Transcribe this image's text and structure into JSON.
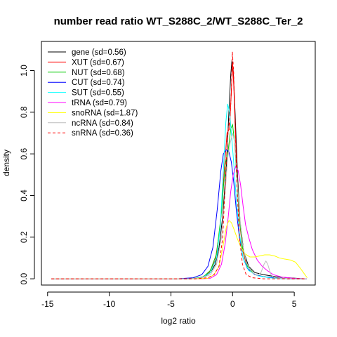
{
  "chart_data": {
    "type": "line",
    "title": "number read ratio WT_S288C_2/WT_S288C_Ter_2",
    "xlabel": "log2 ratio",
    "ylabel": "density",
    "xlim": [
      -15.5,
      6.7
    ],
    "ylim": [
      -0.03,
      1.14
    ],
    "xticks": [
      -15,
      -10,
      -5,
      0,
      5
    ],
    "xtick_labels": [
      "-15",
      "-10",
      "-5",
      "0",
      "5"
    ],
    "yticks": [
      0.0,
      0.2,
      0.4,
      0.6,
      0.8,
      1.0
    ],
    "ytick_labels": [
      "0.0",
      "0.2",
      "0.4",
      "0.6",
      "0.8",
      "1.0"
    ],
    "grid": false,
    "legend_position": "top-left",
    "series": [
      {
        "name": "gene (sd=0.56)",
        "color": "#000000",
        "dash": false,
        "points": [
          [
            -14.7,
            0
          ],
          [
            -4.5,
            0
          ],
          [
            -3,
            0.002
          ],
          [
            -2.3,
            0.01
          ],
          [
            -1.8,
            0.03
          ],
          [
            -1.4,
            0.07
          ],
          [
            -1.1,
            0.15
          ],
          [
            -0.8,
            0.3
          ],
          [
            -0.5,
            0.55
          ],
          [
            -0.3,
            0.8
          ],
          [
            -0.15,
            0.98
          ],
          [
            -0.05,
            1.05
          ],
          [
            0.05,
            1.0
          ],
          [
            0.2,
            0.8
          ],
          [
            0.4,
            0.5
          ],
          [
            0.6,
            0.28
          ],
          [
            0.9,
            0.13
          ],
          [
            1.3,
            0.06
          ],
          [
            1.8,
            0.03
          ],
          [
            2.5,
            0.02
          ],
          [
            3.5,
            0.01
          ],
          [
            4.5,
            0.005
          ],
          [
            5.5,
            0.001
          ],
          [
            6,
            0
          ]
        ]
      },
      {
        "name": "XUT (sd=0.67)",
        "color": "#ff0000",
        "dash": false,
        "points": [
          [
            -14.7,
            0
          ],
          [
            -3.5,
            0
          ],
          [
            -2.5,
            0.006
          ],
          [
            -1.9,
            0.03
          ],
          [
            -1.4,
            0.09
          ],
          [
            -1.0,
            0.25
          ],
          [
            -0.7,
            0.5
          ],
          [
            -0.45,
            0.7
          ],
          [
            -0.25,
            0.72
          ],
          [
            -0.1,
            0.9
          ],
          [
            0.0,
            1.04
          ],
          [
            0.1,
            0.92
          ],
          [
            0.3,
            0.58
          ],
          [
            0.5,
            0.32
          ],
          [
            0.8,
            0.14
          ],
          [
            1.2,
            0.05
          ],
          [
            1.8,
            0.02
          ],
          [
            2.5,
            0.01
          ],
          [
            3.5,
            0.005
          ],
          [
            4.5,
            0
          ],
          [
            6,
            0
          ]
        ]
      },
      {
        "name": "NUT (sd=0.68)",
        "color": "#00cc00",
        "dash": false,
        "points": [
          [
            -14.7,
            0
          ],
          [
            -3.5,
            0
          ],
          [
            -2.4,
            0.008
          ],
          [
            -1.8,
            0.04
          ],
          [
            -1.3,
            0.12
          ],
          [
            -0.9,
            0.32
          ],
          [
            -0.6,
            0.55
          ],
          [
            -0.35,
            0.62
          ],
          [
            -0.15,
            0.72
          ],
          [
            0.0,
            0.74
          ],
          [
            0.15,
            0.66
          ],
          [
            0.35,
            0.48
          ],
          [
            0.55,
            0.3
          ],
          [
            0.8,
            0.15
          ],
          [
            1.2,
            0.06
          ],
          [
            1.8,
            0.02
          ],
          [
            2.5,
            0.01
          ],
          [
            3.5,
            0.005
          ],
          [
            4.5,
            0
          ],
          [
            6,
            0
          ]
        ]
      },
      {
        "name": "CUT (sd=0.74)",
        "color": "#0000ff",
        "dash": false,
        "points": [
          [
            -14.7,
            0
          ],
          [
            -4.5,
            0
          ],
          [
            -3.2,
            0.005
          ],
          [
            -2.5,
            0.02
          ],
          [
            -2.0,
            0.06
          ],
          [
            -1.6,
            0.15
          ],
          [
            -1.25,
            0.33
          ],
          [
            -0.95,
            0.52
          ],
          [
            -0.75,
            0.6
          ],
          [
            -0.5,
            0.62
          ],
          [
            -0.3,
            0.61
          ],
          [
            -0.1,
            0.56
          ],
          [
            0.1,
            0.46
          ],
          [
            0.3,
            0.33
          ],
          [
            0.55,
            0.2
          ],
          [
            0.85,
            0.1
          ],
          [
            1.2,
            0.05
          ],
          [
            1.8,
            0.02
          ],
          [
            2.5,
            0.01
          ],
          [
            3.5,
            0.005
          ],
          [
            4.5,
            0
          ],
          [
            6,
            0
          ]
        ]
      },
      {
        "name": "SUT (sd=0.55)",
        "color": "#00ffff",
        "dash": false,
        "points": [
          [
            -14.7,
            0
          ],
          [
            -3.5,
            0
          ],
          [
            -2.5,
            0.005
          ],
          [
            -1.8,
            0.03
          ],
          [
            -1.3,
            0.1
          ],
          [
            -1.0,
            0.25
          ],
          [
            -0.75,
            0.52
          ],
          [
            -0.55,
            0.75
          ],
          [
            -0.4,
            0.84
          ],
          [
            -0.25,
            0.8
          ],
          [
            -0.1,
            0.7
          ],
          [
            0.1,
            0.55
          ],
          [
            0.3,
            0.38
          ],
          [
            0.55,
            0.22
          ],
          [
            0.85,
            0.1
          ],
          [
            1.3,
            0.04
          ],
          [
            2.0,
            0.015
          ],
          [
            3.0,
            0.005
          ],
          [
            4.0,
            0
          ],
          [
            6,
            0
          ]
        ]
      },
      {
        "name": "tRNA (sd=0.79)",
        "color": "#ff00ff",
        "dash": false,
        "points": [
          [
            -14.7,
            0
          ],
          [
            -2.5,
            0
          ],
          [
            -1.8,
            0.003
          ],
          [
            -1.3,
            0.02
          ],
          [
            -0.9,
            0.07
          ],
          [
            -0.6,
            0.17
          ],
          [
            -0.35,
            0.3
          ],
          [
            -0.15,
            0.42
          ],
          [
            0.05,
            0.5
          ],
          [
            0.25,
            0.54
          ],
          [
            0.45,
            0.52
          ],
          [
            0.65,
            0.45
          ],
          [
            0.85,
            0.35
          ],
          [
            1.05,
            0.26
          ],
          [
            1.3,
            0.2
          ],
          [
            1.6,
            0.14
          ],
          [
            2.0,
            0.09
          ],
          [
            2.4,
            0.06
          ],
          [
            2.8,
            0.04
          ],
          [
            3.3,
            0.02
          ],
          [
            4.0,
            0.008
          ],
          [
            5.0,
            0.002
          ],
          [
            6,
            0
          ]
        ]
      },
      {
        "name": "snoRNA (sd=1.87)",
        "color": "#ffff00",
        "dash": false,
        "points": [
          [
            -14.7,
            0
          ],
          [
            -3,
            0
          ],
          [
            -2.0,
            0.003
          ],
          [
            -1.5,
            0.02
          ],
          [
            -1.1,
            0.06
          ],
          [
            -0.8,
            0.15
          ],
          [
            -0.5,
            0.25
          ],
          [
            -0.3,
            0.28
          ],
          [
            -0.1,
            0.27
          ],
          [
            0.1,
            0.24
          ],
          [
            0.4,
            0.19
          ],
          [
            0.7,
            0.15
          ],
          [
            1.0,
            0.12
          ],
          [
            1.4,
            0.105
          ],
          [
            1.8,
            0.105
          ],
          [
            2.2,
            0.11
          ],
          [
            2.6,
            0.115
          ],
          [
            3.0,
            0.115
          ],
          [
            3.4,
            0.11
          ],
          [
            3.8,
            0.1
          ],
          [
            4.2,
            0.095
          ],
          [
            4.7,
            0.09
          ],
          [
            5.1,
            0.08
          ],
          [
            5.5,
            0.05
          ],
          [
            5.8,
            0.025
          ],
          [
            6.05,
            0.005
          ]
        ]
      },
      {
        "name": "ncRNA (sd=0.84)",
        "color": "#bebebe",
        "dash": false,
        "points": [
          [
            -14.7,
            0
          ],
          [
            -3.5,
            0
          ],
          [
            -2.5,
            0.005
          ],
          [
            -1.8,
            0.02
          ],
          [
            -1.3,
            0.07
          ],
          [
            -0.9,
            0.2
          ],
          [
            -0.6,
            0.42
          ],
          [
            -0.4,
            0.58
          ],
          [
            -0.2,
            0.65
          ],
          [
            0.0,
            0.7
          ],
          [
            0.15,
            0.66
          ],
          [
            0.35,
            0.5
          ],
          [
            0.55,
            0.32
          ],
          [
            0.8,
            0.17
          ],
          [
            1.1,
            0.08
          ],
          [
            1.5,
            0.035
          ],
          [
            2.0,
            0.015
          ],
          [
            2.3,
            0.03
          ],
          [
            2.55,
            0.07
          ],
          [
            2.7,
            0.085
          ],
          [
            2.85,
            0.07
          ],
          [
            3.1,
            0.02
          ],
          [
            3.4,
            0.005
          ],
          [
            4.0,
            0.002
          ],
          [
            5.0,
            0
          ],
          [
            6,
            0
          ]
        ]
      },
      {
        "name": "snRNA (sd=0.36)",
        "color": "#ff0000",
        "dash": true,
        "points": [
          [
            -14.7,
            0
          ],
          [
            -3,
            0
          ],
          [
            -2.0,
            0.005
          ],
          [
            -1.5,
            0.02
          ],
          [
            -1.1,
            0.06
          ],
          [
            -0.8,
            0.2
          ],
          [
            -0.55,
            0.52
          ],
          [
            -0.35,
            0.72
          ],
          [
            -0.2,
            0.78
          ],
          [
            -0.1,
            0.9
          ],
          [
            -0.02,
            1.09
          ],
          [
            0.08,
            1.0
          ],
          [
            0.2,
            0.75
          ],
          [
            0.35,
            0.45
          ],
          [
            0.55,
            0.2
          ],
          [
            0.8,
            0.07
          ],
          [
            1.1,
            0.02
          ],
          [
            1.6,
            0.005
          ],
          [
            2.5,
            0
          ],
          [
            6,
            0
          ]
        ]
      }
    ]
  }
}
